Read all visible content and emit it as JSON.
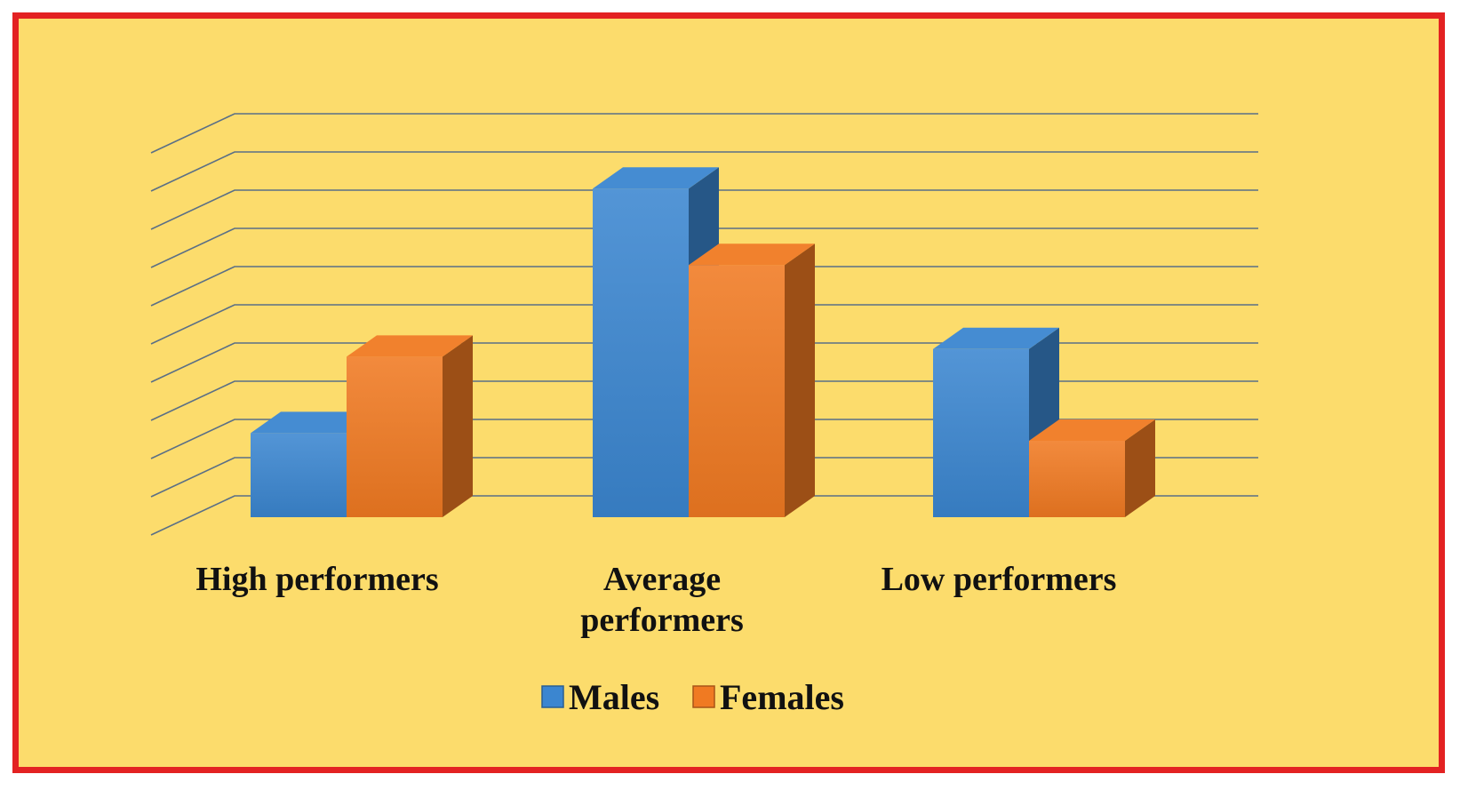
{
  "chart_data": {
    "type": "bar",
    "style": "3d-clustered-column",
    "categories": [
      "High performers",
      "Average performers",
      "Low performers"
    ],
    "series": [
      {
        "name": "Males",
        "values": [
          11,
          43,
          22
        ],
        "color": "#3b86d0"
      },
      {
        "name": "Females",
        "values": [
          21,
          33,
          10
        ],
        "color": "#f07a22"
      }
    ],
    "title": "",
    "xlabel": "",
    "ylabel": "",
    "ylim": [
      0,
      50
    ],
    "y_ticks": [
      "0",
      "5",
      "10",
      "15",
      "20",
      "25",
      "30",
      "35",
      "40",
      "45"
    ],
    "grid": true,
    "legend": "bottom",
    "colors": {
      "background": "#fcdc6c",
      "border": "#e32222",
      "gridline": "#5a6f86"
    }
  }
}
